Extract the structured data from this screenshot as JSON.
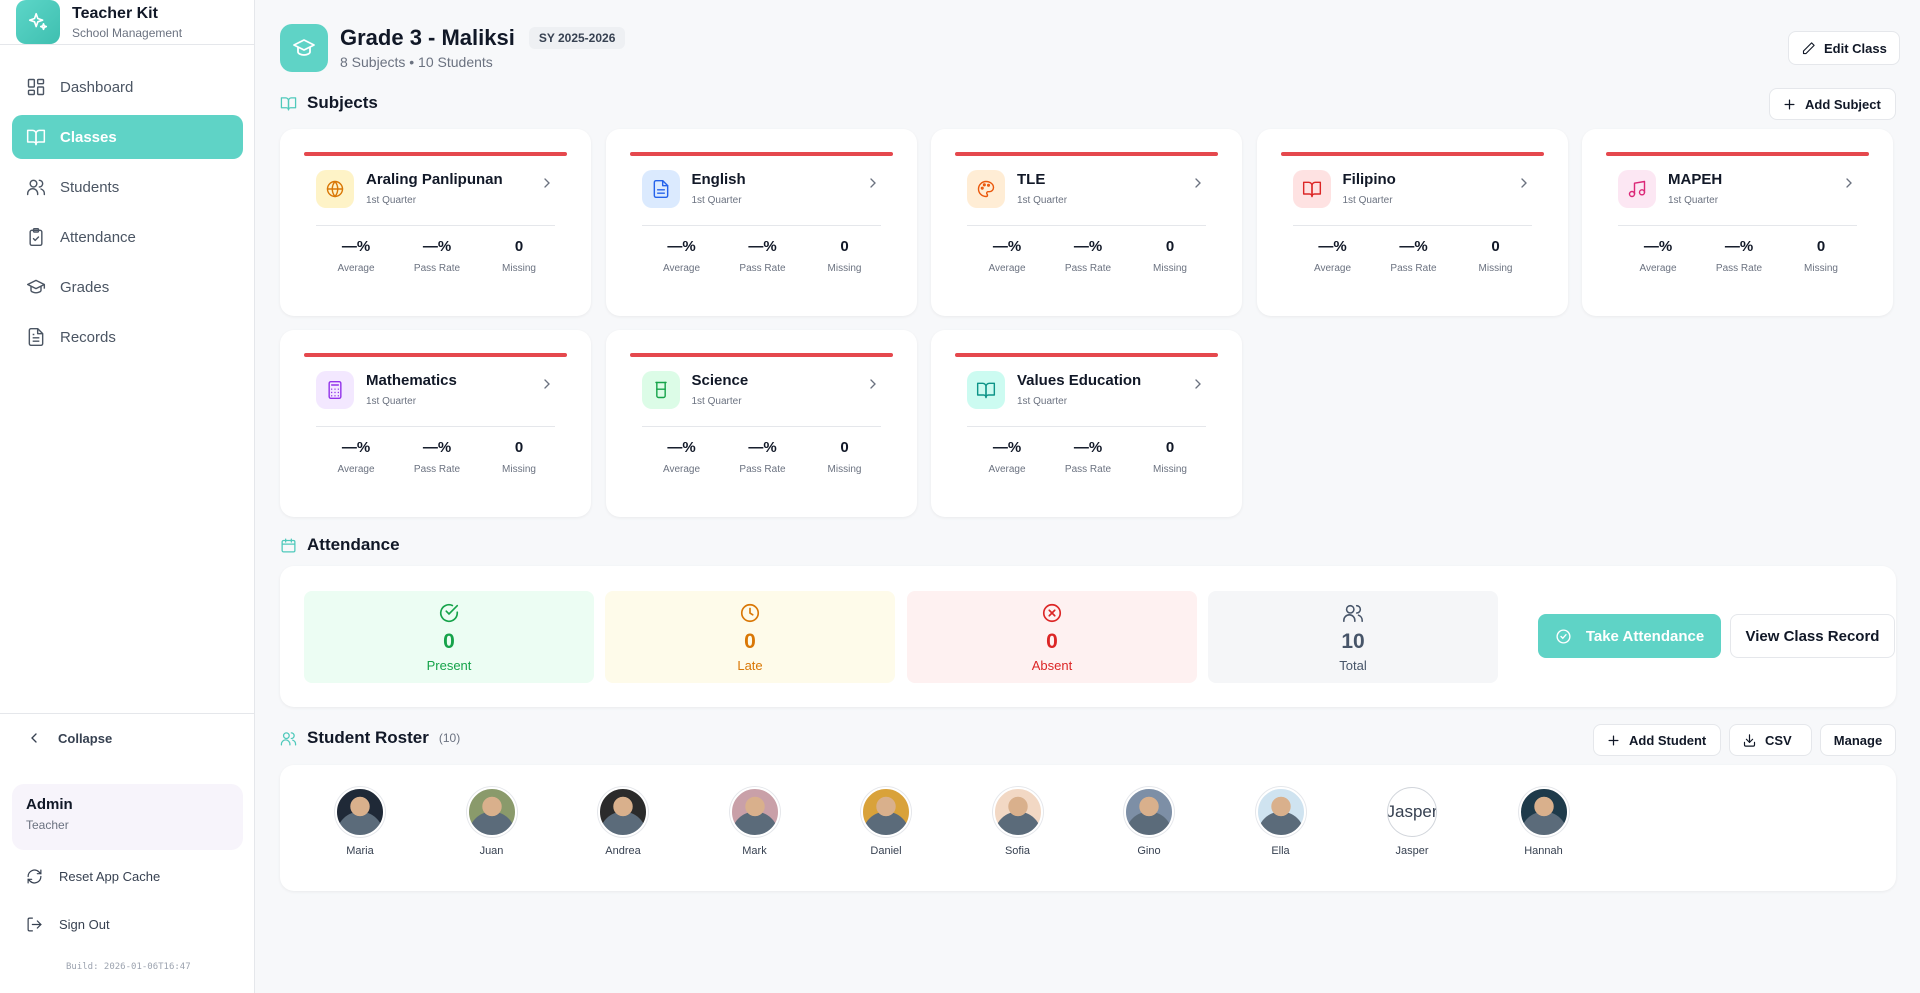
{
  "app": {
    "title": "Teacher Kit",
    "subtitle": "School Management"
  },
  "nav": [
    {
      "label": "Dashboard",
      "icon": "dashboard-icon"
    },
    {
      "label": "Classes",
      "icon": "book-open-icon",
      "active": true
    },
    {
      "label": "Students",
      "icon": "users-icon"
    },
    {
      "label": "Attendance",
      "icon": "clipboard-check-icon"
    },
    {
      "label": "Grades",
      "icon": "graduation-cap-icon"
    },
    {
      "label": "Records",
      "icon": "file-text-icon"
    }
  ],
  "sidebar_footer": {
    "collapse_label": "Collapse",
    "user_name": "Admin",
    "user_role": "Teacher",
    "reset_label": "Reset App Cache",
    "signout_label": "Sign Out",
    "build": "Build: 2026-01-06T16:47"
  },
  "header": {
    "title": "Grade 3 - Maliksi",
    "school_year": "SY 2025-2026",
    "subtitle": "8 Subjects • 10 Students",
    "edit_label": "Edit Class"
  },
  "subjects_section": {
    "title": "Subjects",
    "add_label": "Add Subject"
  },
  "stat_labels": {
    "average": "Average",
    "pass_rate": "Pass Rate",
    "missing": "Missing"
  },
  "subjects": [
    {
      "name": "Araling Panlipunan",
      "quarter": "1st Quarter",
      "average": "—%",
      "pass_rate": "—%",
      "missing": "0",
      "icon": "globe-icon",
      "color": "#d97706",
      "bg": "#fef3c7"
    },
    {
      "name": "English",
      "quarter": "1st Quarter",
      "average": "—%",
      "pass_rate": "—%",
      "missing": "0",
      "icon": "file-text-icon",
      "color": "#2563eb",
      "bg": "#dbeafe"
    },
    {
      "name": "TLE",
      "quarter": "1st Quarter",
      "average": "—%",
      "pass_rate": "—%",
      "missing": "0",
      "icon": "palette-icon",
      "color": "#ea580c",
      "bg": "#ffedd5"
    },
    {
      "name": "Filipino",
      "quarter": "1st Quarter",
      "average": "—%",
      "pass_rate": "—%",
      "missing": "0",
      "icon": "book-open-icon",
      "color": "#dc2626",
      "bg": "#fee2e2"
    },
    {
      "name": "MAPEH",
      "quarter": "1st Quarter",
      "average": "—%",
      "pass_rate": "—%",
      "missing": "0",
      "icon": "music-icon",
      "color": "#db2777",
      "bg": "#fce7f3"
    },
    {
      "name": "Mathematics",
      "quarter": "1st Quarter",
      "average": "—%",
      "pass_rate": "—%",
      "missing": "0",
      "icon": "calculator-icon",
      "color": "#9333ea",
      "bg": "#f3e8ff"
    },
    {
      "name": "Science",
      "quarter": "1st Quarter",
      "average": "—%",
      "pass_rate": "—%",
      "missing": "0",
      "icon": "beaker-icon",
      "color": "#16a34a",
      "bg": "#dcfce7"
    },
    {
      "name": "Values Education",
      "quarter": "1st Quarter",
      "average": "—%",
      "pass_rate": "—%",
      "missing": "0",
      "icon": "book-open-icon",
      "color": "#0d9488",
      "bg": "#ccfbf1"
    }
  ],
  "attendance": {
    "title": "Attendance",
    "present": {
      "value": "0",
      "label": "Present",
      "color": "#16a34a",
      "bg": "#ecfdf3"
    },
    "late": {
      "value": "0",
      "label": "Late",
      "color": "#d97706",
      "bg": "#fefbea"
    },
    "absent": {
      "value": "0",
      "label": "Absent",
      "color": "#dc2626",
      "bg": "#fef1f1"
    },
    "total": {
      "value": "10",
      "label": "Total",
      "color": "#475569",
      "bg": "#f5f6f8"
    },
    "take_label": "Take Attendance",
    "record_label": "View Class Record"
  },
  "roster": {
    "title": "Student Roster",
    "count": "(10)",
    "add_label": "Add Student",
    "csv_label": "CSV",
    "manage_label": "Manage",
    "students": [
      {
        "name": "Maria",
        "bg": "#1f2937"
      },
      {
        "name": "Juan",
        "bg": "#8a9a6b"
      },
      {
        "name": "Andrea",
        "bg": "#2b2b2b"
      },
      {
        "name": "Mark",
        "bg": "#c9a0a8"
      },
      {
        "name": "Daniel",
        "bg": "#d9a23a"
      },
      {
        "name": "Sofia",
        "bg": "#f2d8c4"
      },
      {
        "name": "Gino",
        "bg": "#7d8fa6"
      },
      {
        "name": "Ella",
        "bg": "#cfe3f0"
      },
      {
        "name": "Jasper",
        "bg": "#ffffff",
        "broken": true
      },
      {
        "name": "Hannah",
        "bg": "#1e3a4a"
      }
    ]
  }
}
